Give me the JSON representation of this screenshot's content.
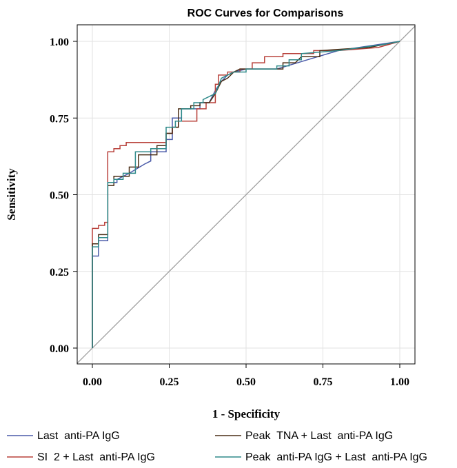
{
  "chart_data": {
    "type": "line",
    "title": "ROC Curves for Comparisons",
    "xlabel": "1 - Specificity",
    "ylabel": "Sensitivity",
    "xlim": [
      0,
      1
    ],
    "ylim": [
      0,
      1
    ],
    "xticks": [
      "0.00",
      "0.25",
      "0.50",
      "0.75",
      "1.00"
    ],
    "yticks": [
      "0.00",
      "0.25",
      "0.50",
      "0.75",
      "1.00"
    ],
    "grid": true,
    "legend_position": "bottom",
    "reference_line": {
      "color": "#a0a0a0",
      "points": [
        [
          0,
          0
        ],
        [
          1,
          1
        ]
      ]
    },
    "series": [
      {
        "name": "Last  anti-PA IgG",
        "color": "#4a5aa8",
        "points": [
          [
            0,
            0
          ],
          [
            0,
            0.3
          ],
          [
            0.02,
            0.3
          ],
          [
            0.02,
            0.35
          ],
          [
            0.05,
            0.35
          ],
          [
            0.05,
            0.54
          ],
          [
            0.08,
            0.54
          ],
          [
            0.08,
            0.55
          ],
          [
            0.12,
            0.57
          ],
          [
            0.17,
            0.6
          ],
          [
            0.19,
            0.61
          ],
          [
            0.19,
            0.64
          ],
          [
            0.24,
            0.64
          ],
          [
            0.24,
            0.68
          ],
          [
            0.26,
            0.68
          ],
          [
            0.26,
            0.75
          ],
          [
            0.29,
            0.75
          ],
          [
            0.29,
            0.78
          ],
          [
            0.35,
            0.78
          ],
          [
            0.35,
            0.8
          ],
          [
            0.38,
            0.8
          ],
          [
            0.4,
            0.84
          ],
          [
            0.42,
            0.87
          ],
          [
            0.44,
            0.89
          ],
          [
            0.46,
            0.9
          ],
          [
            0.5,
            0.91
          ],
          [
            0.6,
            0.91
          ],
          [
            0.7,
            0.94
          ],
          [
            0.8,
            0.97
          ],
          [
            1.0,
            1.0
          ]
        ]
      },
      {
        "name": "SI  2 + Last  anti-PA IgG",
        "color": "#b8403a",
        "points": [
          [
            0,
            0
          ],
          [
            0,
            0.39
          ],
          [
            0.02,
            0.39
          ],
          [
            0.02,
            0.4
          ],
          [
            0.04,
            0.4
          ],
          [
            0.04,
            0.41
          ],
          [
            0.05,
            0.41
          ],
          [
            0.05,
            0.64
          ],
          [
            0.07,
            0.64
          ],
          [
            0.07,
            0.65
          ],
          [
            0.09,
            0.65
          ],
          [
            0.09,
            0.66
          ],
          [
            0.11,
            0.66
          ],
          [
            0.11,
            0.67
          ],
          [
            0.24,
            0.67
          ],
          [
            0.24,
            0.7
          ],
          [
            0.26,
            0.7
          ],
          [
            0.26,
            0.72
          ],
          [
            0.28,
            0.72
          ],
          [
            0.28,
            0.74
          ],
          [
            0.34,
            0.74
          ],
          [
            0.34,
            0.78
          ],
          [
            0.37,
            0.78
          ],
          [
            0.37,
            0.8
          ],
          [
            0.4,
            0.8
          ],
          [
            0.4,
            0.86
          ],
          [
            0.41,
            0.86
          ],
          [
            0.41,
            0.89
          ],
          [
            0.44,
            0.89
          ],
          [
            0.44,
            0.9
          ],
          [
            0.48,
            0.9
          ],
          [
            0.48,
            0.91
          ],
          [
            0.52,
            0.91
          ],
          [
            0.52,
            0.93
          ],
          [
            0.56,
            0.93
          ],
          [
            0.56,
            0.95
          ],
          [
            0.62,
            0.95
          ],
          [
            0.62,
            0.96
          ],
          [
            0.72,
            0.96
          ],
          [
            0.72,
            0.97
          ],
          [
            0.8,
            0.97
          ],
          [
            0.93,
            0.98
          ],
          [
            1.0,
            1.0
          ]
        ]
      },
      {
        "name": "Peak  TNA + Last  anti-PA IgG",
        "color": "#4a2e16",
        "points": [
          [
            0,
            0
          ],
          [
            0,
            0.34
          ],
          [
            0.02,
            0.34
          ],
          [
            0.02,
            0.37
          ],
          [
            0.05,
            0.37
          ],
          [
            0.05,
            0.53
          ],
          [
            0.07,
            0.53
          ],
          [
            0.07,
            0.56
          ],
          [
            0.12,
            0.56
          ],
          [
            0.12,
            0.59
          ],
          [
            0.15,
            0.59
          ],
          [
            0.15,
            0.63
          ],
          [
            0.21,
            0.63
          ],
          [
            0.21,
            0.66
          ],
          [
            0.24,
            0.66
          ],
          [
            0.24,
            0.7
          ],
          [
            0.26,
            0.7
          ],
          [
            0.26,
            0.72
          ],
          [
            0.28,
            0.72
          ],
          [
            0.28,
            0.78
          ],
          [
            0.32,
            0.78
          ],
          [
            0.32,
            0.79
          ],
          [
            0.35,
            0.79
          ],
          [
            0.35,
            0.8
          ],
          [
            0.38,
            0.8
          ],
          [
            0.4,
            0.83
          ],
          [
            0.42,
            0.87
          ],
          [
            0.44,
            0.88
          ],
          [
            0.46,
            0.9
          ],
          [
            0.48,
            0.91
          ],
          [
            0.62,
            0.91
          ],
          [
            0.62,
            0.93
          ],
          [
            0.66,
            0.93
          ],
          [
            0.68,
            0.95
          ],
          [
            0.74,
            0.95
          ],
          [
            0.74,
            0.97
          ],
          [
            0.9,
            0.98
          ],
          [
            1.0,
            1.0
          ]
        ]
      },
      {
        "name": "Peak  anti-PA IgG + Last  anti-PA IgG",
        "color": "#2e8a8a",
        "points": [
          [
            0,
            0
          ],
          [
            0,
            0.33
          ],
          [
            0.02,
            0.33
          ],
          [
            0.02,
            0.36
          ],
          [
            0.05,
            0.36
          ],
          [
            0.05,
            0.54
          ],
          [
            0.07,
            0.54
          ],
          [
            0.07,
            0.55
          ],
          [
            0.1,
            0.55
          ],
          [
            0.1,
            0.57
          ],
          [
            0.14,
            0.57
          ],
          [
            0.14,
            0.64
          ],
          [
            0.19,
            0.64
          ],
          [
            0.19,
            0.65
          ],
          [
            0.24,
            0.65
          ],
          [
            0.24,
            0.72
          ],
          [
            0.27,
            0.72
          ],
          [
            0.27,
            0.74
          ],
          [
            0.29,
            0.74
          ],
          [
            0.29,
            0.78
          ],
          [
            0.33,
            0.78
          ],
          [
            0.33,
            0.8
          ],
          [
            0.36,
            0.8
          ],
          [
            0.36,
            0.81
          ],
          [
            0.4,
            0.83
          ],
          [
            0.42,
            0.88
          ],
          [
            0.44,
            0.89
          ],
          [
            0.46,
            0.9
          ],
          [
            0.5,
            0.9
          ],
          [
            0.5,
            0.91
          ],
          [
            0.6,
            0.91
          ],
          [
            0.6,
            0.92
          ],
          [
            0.64,
            0.92
          ],
          [
            0.64,
            0.94
          ],
          [
            0.68,
            0.94
          ],
          [
            0.68,
            0.96
          ],
          [
            0.8,
            0.97
          ],
          [
            0.95,
            0.99
          ],
          [
            1.0,
            1.0
          ]
        ]
      }
    ]
  }
}
